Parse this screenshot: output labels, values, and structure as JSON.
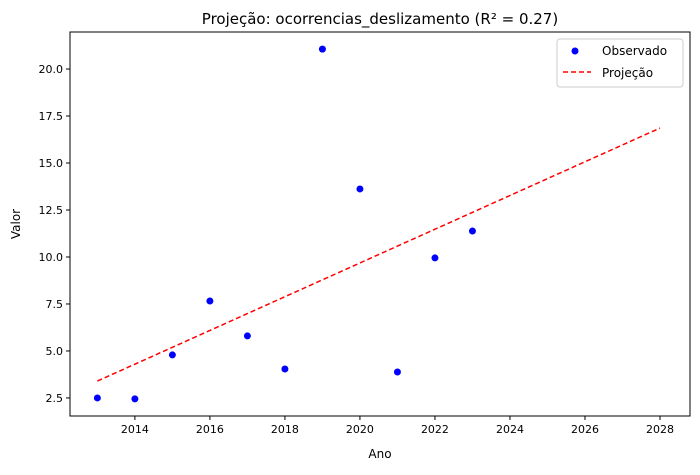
{
  "chart_data": {
    "type": "scatter",
    "title": "Projeção: ocorrencias_deslizamento (R² = 0.27)",
    "xlabel": "Ano",
    "ylabel": "Valor",
    "xlim": [
      2012.27,
      2028.8
    ],
    "ylim": [
      1.54,
      21.97
    ],
    "xticks": [
      2014,
      2016,
      2018,
      2020,
      2022,
      2024,
      2026,
      2028
    ],
    "yticks": [
      2.5,
      5.0,
      7.5,
      10.0,
      12.5,
      15.0,
      17.5,
      20.0
    ],
    "grid": false,
    "legend_placement": "top-right",
    "series": [
      {
        "name": "Observado",
        "kind": "scatter",
        "color": "#0000ff",
        "x": [
          2013,
          2014,
          2015,
          2016,
          2017,
          2018,
          2019,
          2020,
          2021,
          2022,
          2023
        ],
        "y": [
          2.5,
          2.45,
          4.79,
          7.66,
          5.8,
          4.04,
          21.06,
          13.62,
          3.88,
          9.95,
          11.38
        ]
      },
      {
        "name": "Projeção",
        "kind": "line",
        "style": "dashed",
        "color": "#ff0000",
        "x": [
          2013,
          2028
        ],
        "y": [
          3.4,
          16.86
        ]
      }
    ]
  }
}
